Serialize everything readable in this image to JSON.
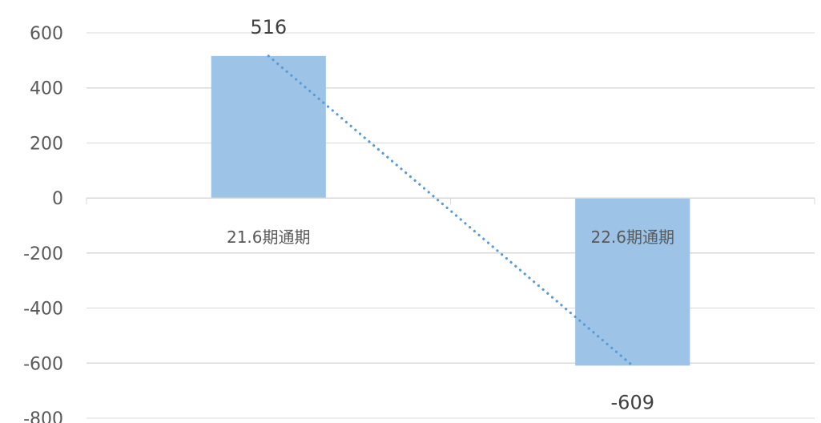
{
  "chart_data": {
    "type": "bar",
    "categories": [
      "21.6期通期",
      "22.6期通期"
    ],
    "values": [
      516,
      -609
    ],
    "data_labels": [
      "516",
      "-609"
    ],
    "ylim": [
      -800,
      600
    ],
    "yticks": [
      600,
      400,
      200,
      0,
      -200,
      -400,
      -600,
      -800
    ],
    "ytick_labels": [
      "600",
      "400",
      "200",
      "0",
      "-200",
      "-400",
      "-600",
      "-800"
    ],
    "grid": true,
    "legend": "none",
    "trendline": {
      "type": "linear",
      "style": "dotted"
    },
    "colors": {
      "bar": "#9dc3e6",
      "trendline": "#5b9bd5",
      "gridline": "#d9d9d9",
      "tick_label": "#595959",
      "data_label": "#404040"
    }
  }
}
